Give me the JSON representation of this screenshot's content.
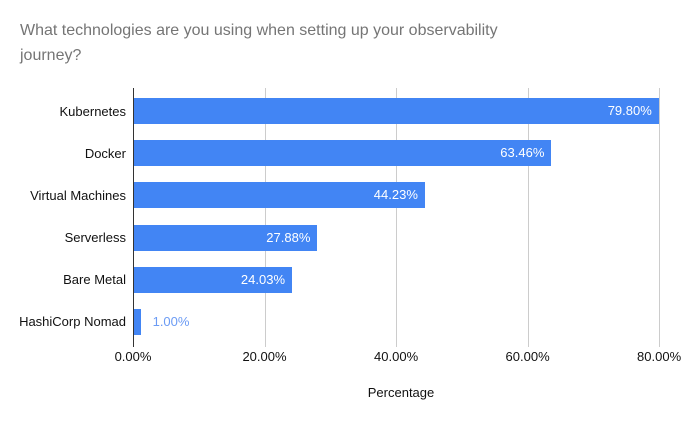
{
  "title_line1": "What technologies are you using when setting up your observability",
  "title_line2": "journey?",
  "chart_data": {
    "type": "bar",
    "orientation": "horizontal",
    "title": "What technologies are you using when setting up your observability journey?",
    "categories": [
      "Kubernetes",
      "Docker",
      "Virtual Machines",
      "Serverless",
      "Bare Metal",
      "HashiCorp Nomad"
    ],
    "values": [
      79.8,
      63.46,
      44.23,
      27.88,
      24.03,
      1.0
    ],
    "value_labels": [
      "79.80%",
      "63.46%",
      "44.23%",
      "27.88%",
      "24.03%",
      "1.00%"
    ],
    "xlabel": "Percentage",
    "ylabel": "",
    "xlim": [
      0,
      81.5
    ],
    "x_ticks": [
      0,
      20,
      40,
      60,
      80
    ],
    "x_tick_labels": [
      "0.00%",
      "20.00%",
      "40.00%",
      "60.00%",
      "80.00%"
    ],
    "grid": true,
    "legend": false,
    "colors": {
      "bar": "#4285f4",
      "value_label_inside": "#ffffff",
      "value_label_outside": "#6b9bf4",
      "gridline": "#cccccc",
      "axis_line": "#333333",
      "title_text": "#757575",
      "axis_text": "#111111"
    }
  }
}
